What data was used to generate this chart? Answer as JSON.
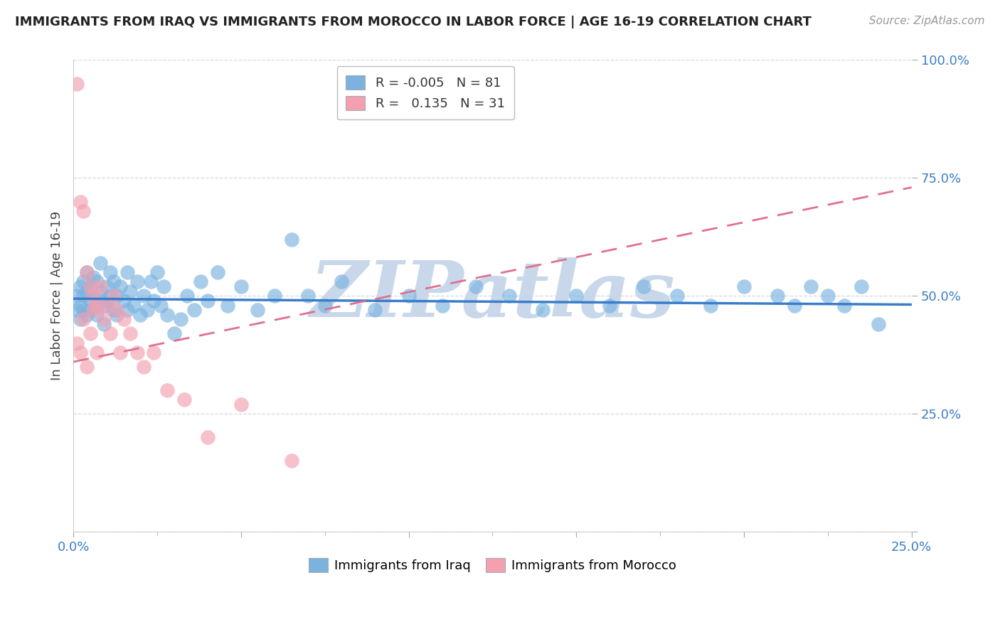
{
  "title": "IMMIGRANTS FROM IRAQ VS IMMIGRANTS FROM MOROCCO IN LABOR FORCE | AGE 16-19 CORRELATION CHART",
  "source": "Source: ZipAtlas.com",
  "ylabel": "In Labor Force | Age 16-19",
  "xlim": [
    0.0,
    0.25
  ],
  "ylim": [
    0.0,
    1.0
  ],
  "iraq_color": "#7ab3e0",
  "morocco_color": "#f4a0b0",
  "iraq_line_color": "#3a7dc9",
  "morocco_line_color": "#e07090",
  "watermark": "ZIPatlas",
  "watermark_color": "#c8d8ea",
  "legend_iraq_R": "-0.005",
  "legend_iraq_N": "81",
  "legend_morocco_R": "0.135",
  "legend_morocco_N": "31",
  "iraq_x": [
    0.001,
    0.001,
    0.002,
    0.002,
    0.002,
    0.003,
    0.003,
    0.003,
    0.004,
    0.004,
    0.004,
    0.005,
    0.005,
    0.005,
    0.006,
    0.006,
    0.007,
    0.007,
    0.007,
    0.008,
    0.008,
    0.009,
    0.009,
    0.01,
    0.01,
    0.011,
    0.011,
    0.012,
    0.012,
    0.013,
    0.013,
    0.014,
    0.015,
    0.016,
    0.016,
    0.017,
    0.018,
    0.019,
    0.02,
    0.021,
    0.022,
    0.023,
    0.024,
    0.025,
    0.026,
    0.027,
    0.028,
    0.03,
    0.032,
    0.034,
    0.036,
    0.038,
    0.04,
    0.043,
    0.046,
    0.05,
    0.055,
    0.06,
    0.065,
    0.07,
    0.075,
    0.08,
    0.09,
    0.1,
    0.11,
    0.12,
    0.13,
    0.14,
    0.15,
    0.16,
    0.17,
    0.18,
    0.19,
    0.2,
    0.21,
    0.215,
    0.22,
    0.225,
    0.23,
    0.235,
    0.24
  ],
  "iraq_y": [
    0.47,
    0.5,
    0.48,
    0.52,
    0.45,
    0.5,
    0.53,
    0.47,
    0.51,
    0.46,
    0.55,
    0.49,
    0.52,
    0.47,
    0.5,
    0.54,
    0.48,
    0.53,
    0.46,
    0.51,
    0.57,
    0.49,
    0.44,
    0.52,
    0.48,
    0.55,
    0.5,
    0.47,
    0.53,
    0.5,
    0.46,
    0.52,
    0.49,
    0.55,
    0.47,
    0.51,
    0.48,
    0.53,
    0.46,
    0.5,
    0.47,
    0.53,
    0.49,
    0.55,
    0.48,
    0.52,
    0.46,
    0.42,
    0.45,
    0.5,
    0.47,
    0.53,
    0.49,
    0.55,
    0.48,
    0.52,
    0.47,
    0.5,
    0.62,
    0.5,
    0.48,
    0.53,
    0.47,
    0.5,
    0.48,
    0.52,
    0.5,
    0.47,
    0.5,
    0.48,
    0.52,
    0.5,
    0.48,
    0.52,
    0.5,
    0.48,
    0.52,
    0.5,
    0.48,
    0.52,
    0.44
  ],
  "morocco_x": [
    0.001,
    0.001,
    0.002,
    0.002,
    0.003,
    0.003,
    0.004,
    0.004,
    0.005,
    0.005,
    0.006,
    0.006,
    0.007,
    0.007,
    0.008,
    0.009,
    0.01,
    0.011,
    0.012,
    0.013,
    0.014,
    0.015,
    0.017,
    0.019,
    0.021,
    0.024,
    0.028,
    0.033,
    0.04,
    0.05,
    0.065
  ],
  "morocco_y": [
    0.95,
    0.4,
    0.7,
    0.38,
    0.68,
    0.45,
    0.55,
    0.35,
    0.52,
    0.42,
    0.5,
    0.47,
    0.48,
    0.38,
    0.52,
    0.45,
    0.48,
    0.42,
    0.5,
    0.47,
    0.38,
    0.45,
    0.42,
    0.38,
    0.35,
    0.38,
    0.3,
    0.28,
    0.2,
    0.27,
    0.15
  ]
}
